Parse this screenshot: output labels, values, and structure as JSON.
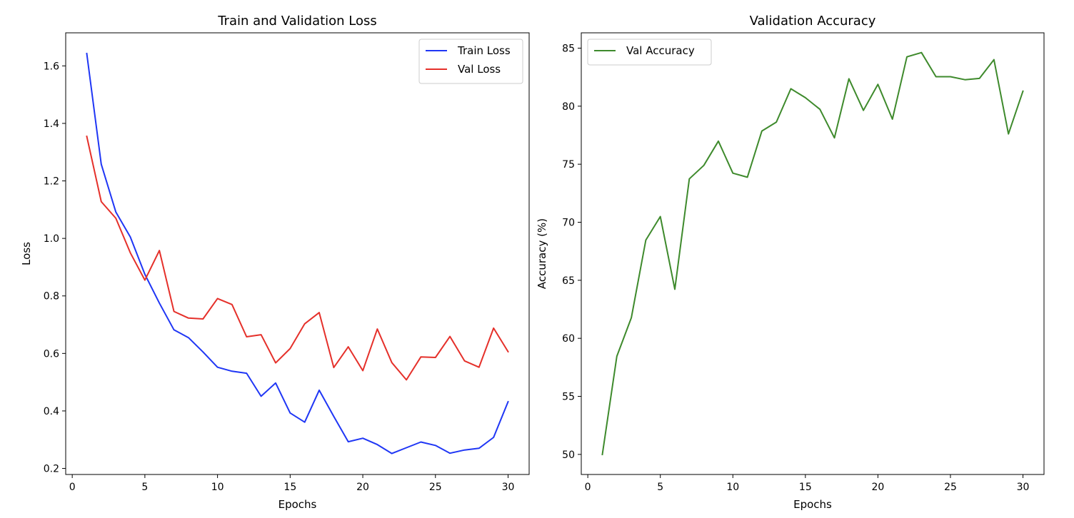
{
  "chart_data": [
    {
      "type": "line",
      "title": "Train and Validation Loss",
      "xlabel": "Epochs",
      "ylabel": "Loss",
      "xlim": [
        -0.45,
        31.45
      ],
      "ylim": [
        0.179,
        1.715
      ],
      "xticks": [
        0,
        5,
        10,
        15,
        20,
        25,
        30
      ],
      "yticks": [
        0.2,
        0.4,
        0.6,
        0.8,
        1.0,
        1.2,
        1.4,
        1.6
      ],
      "ytick_labels": [
        "0.2",
        "0.4",
        "0.6",
        "0.8",
        "1.0",
        "1.2",
        "1.4",
        "1.6"
      ],
      "legend_loc": "upper right",
      "grid": false,
      "x": [
        1,
        2,
        3,
        4,
        5,
        6,
        7,
        8,
        9,
        10,
        11,
        12,
        13,
        14,
        15,
        16,
        17,
        18,
        19,
        20,
        21,
        22,
        23,
        24,
        25,
        26,
        27,
        28,
        29,
        30
      ],
      "series": [
        {
          "name": "Train Loss",
          "color": "#1f36f5",
          "values": [
            1.643,
            1.258,
            1.092,
            1.005,
            0.875,
            0.775,
            0.682,
            0.655,
            0.605,
            0.552,
            0.538,
            0.531,
            0.451,
            0.497,
            0.393,
            0.361,
            0.472,
            0.381,
            0.293,
            0.305,
            0.283,
            0.252,
            0.272,
            0.292,
            0.28,
            0.253,
            0.264,
            0.27,
            0.308,
            0.432
          ]
        },
        {
          "name": "Val Loss",
          "color": "#e5302a",
          "values": [
            1.355,
            1.128,
            1.07,
            0.95,
            0.855,
            0.958,
            0.746,
            0.723,
            0.72,
            0.791,
            0.77,
            0.658,
            0.665,
            0.567,
            0.617,
            0.703,
            0.742,
            0.551,
            0.623,
            0.54,
            0.685,
            0.568,
            0.508,
            0.588,
            0.586,
            0.659,
            0.574,
            0.552,
            0.688,
            0.606
          ]
        }
      ]
    },
    {
      "type": "line",
      "title": "Validation Accuracy",
      "xlabel": "Epochs",
      "ylabel": "Accuracy (%)",
      "xlim": [
        -0.45,
        31.45
      ],
      "ylim": [
        48.27,
        86.32
      ],
      "xticks": [
        0,
        5,
        10,
        15,
        20,
        25,
        30
      ],
      "yticks": [
        50,
        55,
        60,
        65,
        70,
        75,
        80,
        85
      ],
      "ytick_labels": [
        "50",
        "55",
        "60",
        "65",
        "70",
        "75",
        "80",
        "85"
      ],
      "legend_loc": "upper left",
      "grid": false,
      "x": [
        1,
        2,
        3,
        4,
        5,
        6,
        7,
        8,
        9,
        10,
        11,
        12,
        13,
        14,
        15,
        16,
        17,
        18,
        19,
        20,
        21,
        22,
        23,
        24,
        25,
        26,
        27,
        28,
        29,
        30
      ],
      "series": [
        {
          "name": "Val Accuracy",
          "color": "#3e8a2c",
          "values": [
            49.99,
            58.45,
            61.77,
            68.46,
            70.49,
            64.23,
            73.74,
            74.9,
            76.99,
            74.23,
            73.88,
            77.86,
            78.63,
            81.5,
            80.73,
            79.73,
            77.27,
            82.36,
            79.64,
            81.88,
            78.88,
            84.25,
            84.62,
            82.54,
            82.54,
            82.28,
            82.39,
            84.01,
            77.61,
            81.29
          ]
        }
      ]
    }
  ]
}
